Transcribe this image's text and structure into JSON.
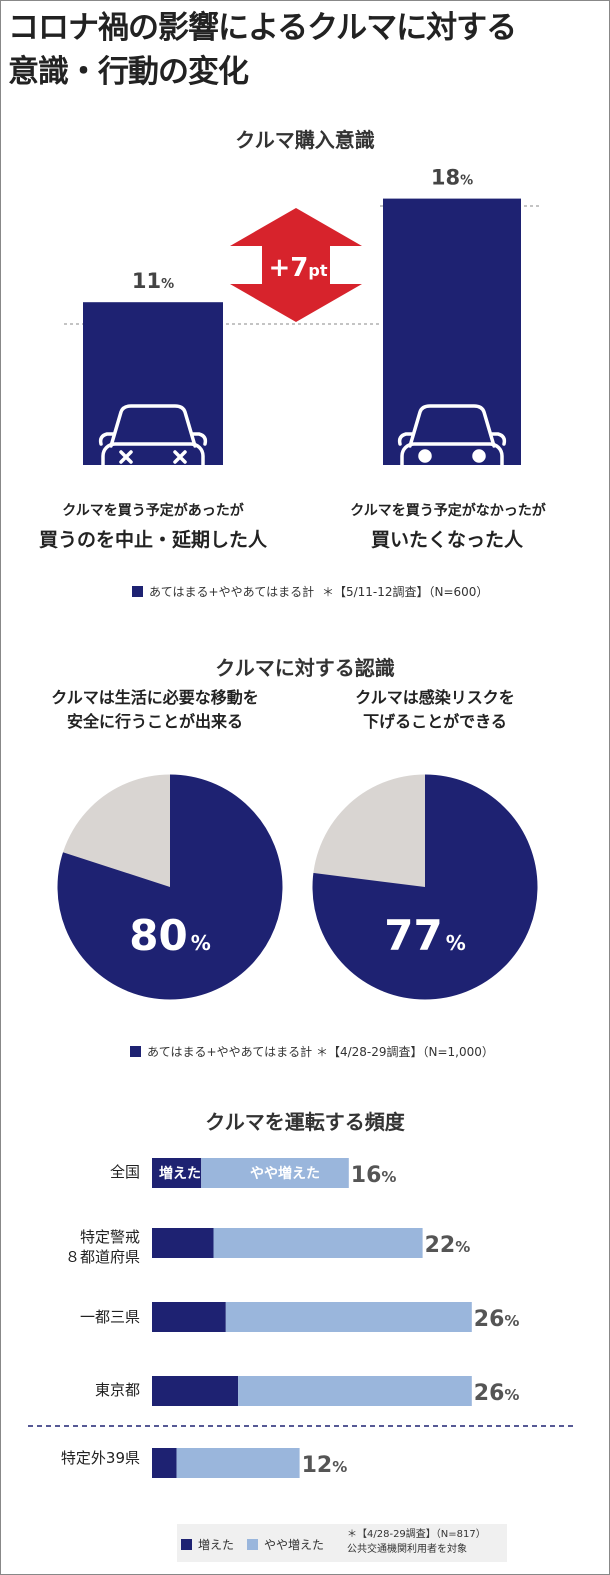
{
  "title_line1": "コロナ禍の影響によるクルマに対する",
  "title_line2": "意識・行動の変化",
  "colors": {
    "navy": "#1e2272",
    "light_blue": "#9ab6dc",
    "grey": "#d9d5d2",
    "red": "#d7232c"
  },
  "chart_data": [
    {
      "type": "bar",
      "title": "クルマ購入意識",
      "categories": [
        "クルマを買う予定があったが 買うのを中止・延期した人",
        "クルマを買う予定がなかったが 買いたくなった人"
      ],
      "values": [
        11,
        18
      ],
      "unit": "%",
      "value_labels": [
        "11",
        "18"
      ],
      "unit_label": "%",
      "cat1_line1": "クルマを買う予定があったが",
      "cat1_line2": "買うのを中止・延期した人",
      "cat2_line1": "クルマを買う予定がなかったが",
      "cat2_line2": "買いたくなった人",
      "diff_value": "+7",
      "diff_unit": "pt",
      "ylim": [
        0,
        20
      ],
      "legend": "あてはまる+ややあてはまる計",
      "note": "＊【5/11-12調査】（N=600）"
    },
    {
      "type": "pie",
      "title": "クルマに対する認識",
      "pies": [
        {
          "caption_line1": "クルマは生活に必要な移動を",
          "caption_line2": "安全に行うことが出来る",
          "value": 80,
          "label": "80",
          "unit": "%"
        },
        {
          "caption_line1": "クルマは感染リスクを",
          "caption_line2": "下げることができる",
          "value": 77,
          "label": "77",
          "unit": "%"
        }
      ],
      "legend": "あてはまる+ややあてはまる計",
      "note": "＊【4/28-29調査】（N=1,000）"
    },
    {
      "type": "bar",
      "orientation": "horizontal",
      "stacked": true,
      "title": "クルマを運転する頻度",
      "categories": [
        "全国",
        "特定警戒８都道府県",
        "一都三県",
        "東京都",
        "特定外39県"
      ],
      "category_labels": [
        [
          "全国"
        ],
        [
          "特定警戒",
          "８都道府県"
        ],
        [
          "一都三県"
        ],
        [
          "東京都"
        ],
        [
          "特定外39県"
        ]
      ],
      "series": [
        {
          "name": "増えた",
          "values": [
            4,
            5,
            6,
            7,
            2
          ]
        },
        {
          "name": "やや増えた",
          "values": [
            12,
            17,
            20,
            19,
            10
          ]
        }
      ],
      "totals": [
        "16",
        "22",
        "26",
        "26",
        "12"
      ],
      "unit": "%",
      "inbar_label1": "増えた",
      "inbar_label2": "やや増えた",
      "legend": [
        "増えた",
        "やや増えた"
      ],
      "note_line1": "＊【4/28-29調査】（N=817）",
      "note_line2": "公共交通機関利用者を対象"
    }
  ]
}
